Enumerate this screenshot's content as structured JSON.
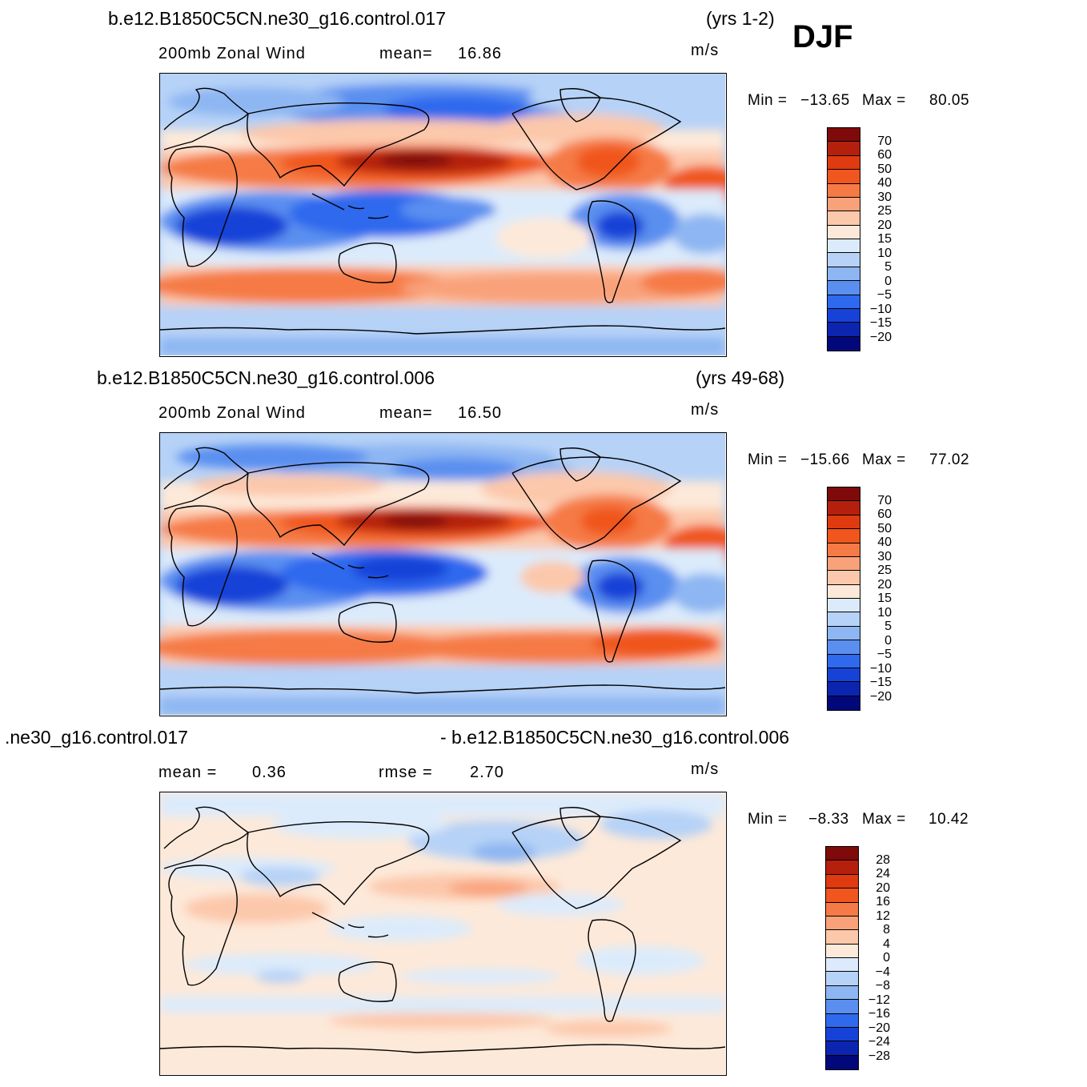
{
  "season": "DJF",
  "panels": [
    {
      "case_title": "b.e12.B1850C5CN.ne30_g16.control.017",
      "years": "(yrs 1-2)",
      "variable": "200mb  Zonal  Wind",
      "stat1_label": "mean=",
      "stat1_value": "16.86",
      "stat2_label": "",
      "stat2_value": "",
      "units": "m/s",
      "min_label": "Min  =",
      "min_value": "−13.65",
      "max_label": "Max  =",
      "max_value": "80.05",
      "colorbar_labels": [
        "70",
        "60",
        "50",
        "40",
        "30",
        "25",
        "20",
        "15",
        "10",
        "5",
        "0",
        "−5",
        "−10",
        "−15",
        "−20"
      ]
    },
    {
      "case_title": "b.e12.B1850C5CN.ne30_g16.control.006",
      "years": "(yrs 49-68)",
      "variable": "200mb  Zonal  Wind",
      "stat1_label": "mean=",
      "stat1_value": "16.50",
      "stat2_label": "",
      "stat2_value": "",
      "units": "m/s",
      "min_label": "Min  =",
      "min_value": "−15.66",
      "max_label": "Max  =",
      "max_value": "77.02",
      "colorbar_labels": [
        "70",
        "60",
        "50",
        "40",
        "30",
        "25",
        "20",
        "15",
        "10",
        "5",
        "0",
        "−5",
        "−10",
        "−15",
        "−20"
      ]
    },
    {
      "case_title_left": ".ne30_g16.control.017",
      "case_title_right": "- b.e12.B1850C5CN.ne30_g16.control.006",
      "stat1_label": "mean  =",
      "stat1_value": "0.36",
      "stat2_label": "rmse  =",
      "stat2_value": "2.70",
      "units": "m/s",
      "min_label": "Min  =",
      "min_value": "−8.33",
      "max_label": "Max  =",
      "max_value": "10.42",
      "colorbar_labels": [
        "28",
        "24",
        "20",
        "16",
        "12",
        "8",
        "4",
        "0",
        "−4",
        "−8",
        "−12",
        "−16",
        "−20",
        "−24",
        "−28"
      ]
    }
  ],
  "colors": {
    "colorbar": [
      "#7f0a0a",
      "#b5200d",
      "#e03a10",
      "#f0561e",
      "#f57a45",
      "#f9a27a",
      "#fcc8ab",
      "#fde9d9",
      "#dcebfb",
      "#b6d2f7",
      "#8db6f2",
      "#5a8ff0",
      "#2f69ee",
      "#1742d8",
      "#0c25b0",
      "#02087a"
    ],
    "coast": "#000000"
  }
}
